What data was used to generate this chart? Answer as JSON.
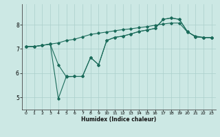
{
  "xlabel": "Humidex (Indice chaleur)",
  "bg_color": "#cce8e4",
  "grid_color": "#aacfcb",
  "line_color": "#1a6b5a",
  "xlim": [
    -0.5,
    23.5
  ],
  "ylim": [
    4.5,
    8.85
  ],
  "xticks": [
    0,
    1,
    2,
    3,
    4,
    5,
    6,
    7,
    8,
    9,
    10,
    11,
    12,
    13,
    14,
    15,
    16,
    17,
    18,
    19,
    20,
    21,
    22,
    23
  ],
  "yticks": [
    5,
    6,
    7,
    8
  ],
  "line1_x": [
    0,
    1,
    2,
    3,
    4,
    5,
    6,
    7,
    8,
    9,
    10,
    11,
    12,
    13,
    14,
    15,
    16,
    17,
    18,
    19,
    20,
    21,
    22,
    23
  ],
  "line1_y": [
    7.1,
    7.1,
    7.15,
    7.2,
    7.25,
    7.35,
    7.4,
    7.5,
    7.6,
    7.65,
    7.7,
    7.75,
    7.8,
    7.83,
    7.88,
    7.92,
    7.98,
    8.03,
    8.07,
    8.07,
    7.7,
    7.53,
    7.48,
    7.47
  ],
  "line2_x": [
    0,
    1,
    2,
    3,
    4,
    5,
    6,
    7,
    8,
    9,
    10,
    11,
    12,
    13,
    14,
    15,
    16,
    17,
    18,
    19,
    20,
    21,
    22,
    23
  ],
  "line2_y": [
    7.1,
    7.1,
    7.15,
    7.2,
    6.35,
    5.85,
    5.87,
    5.87,
    6.65,
    6.35,
    7.35,
    7.48,
    7.53,
    7.62,
    7.72,
    7.78,
    7.85,
    8.22,
    8.28,
    8.22,
    7.72,
    7.5,
    7.47,
    7.47
  ],
  "line3_x": [
    0,
    1,
    2,
    3,
    4,
    5,
    6,
    7,
    8,
    9,
    10,
    11,
    12,
    13,
    14,
    15,
    16,
    17,
    18,
    19,
    20,
    21,
    22,
    23
  ],
  "line3_y": [
    7.1,
    7.1,
    7.15,
    7.2,
    4.95,
    5.87,
    5.87,
    5.87,
    6.65,
    6.35,
    7.35,
    7.48,
    7.53,
    7.62,
    7.72,
    7.78,
    7.85,
    8.22,
    8.28,
    8.22,
    7.72,
    7.5,
    7.47,
    7.47
  ]
}
